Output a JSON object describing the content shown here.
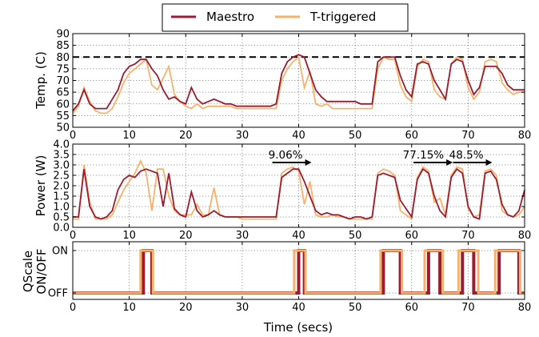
{
  "colors": {
    "maestro": "#9b1c31",
    "t_triggered": "#f6b26b"
  },
  "legend": [
    "Maestro",
    "T-triggered"
  ],
  "xlabel": "Time (secs)",
  "chart_data": [
    {
      "type": "line",
      "ylabel": "Temp. (C)",
      "xlim": [
        0,
        80
      ],
      "ylim": [
        50,
        90
      ],
      "xticks": [
        0,
        10,
        20,
        30,
        40,
        50,
        60,
        70,
        80
      ],
      "yticks": [
        50,
        55,
        60,
        65,
        70,
        75,
        80,
        85,
        90
      ],
      "threshold": 80,
      "series": [
        {
          "name": "Maestro",
          "x": [
            0,
            1,
            2,
            3,
            4,
            5,
            6,
            7,
            8,
            9,
            10,
            11,
            12,
            13,
            14,
            15,
            16,
            17,
            18,
            19,
            20,
            21,
            22,
            23,
            24,
            25,
            26,
            27,
            28,
            29,
            30,
            31,
            32,
            33,
            34,
            35,
            36,
            37,
            38,
            39,
            40,
            41,
            42,
            43,
            44,
            45,
            46,
            47,
            48,
            49,
            50,
            51,
            52,
            53,
            54,
            55,
            56,
            57,
            58,
            59,
            60,
            61,
            62,
            63,
            64,
            65,
            66,
            67,
            68,
            69,
            70,
            71,
            72,
            73,
            74,
            75,
            76,
            77,
            78,
            79,
            80
          ],
          "y": [
            57,
            60,
            66,
            60,
            58,
            58,
            58,
            62,
            66,
            73,
            76,
            77,
            79,
            79,
            75,
            72,
            66,
            62,
            63,
            61,
            60,
            67,
            62,
            60,
            61,
            62,
            61,
            60,
            60,
            59,
            59,
            59,
            59,
            59,
            59,
            59,
            60,
            73,
            78,
            80,
            81,
            80,
            73,
            66,
            63,
            61,
            61,
            61,
            61,
            61,
            61,
            60,
            60,
            60,
            78,
            80,
            80,
            80,
            72,
            66,
            63,
            77,
            78,
            77,
            70,
            66,
            62,
            77,
            79,
            78,
            70,
            64,
            67,
            76,
            76,
            76,
            73,
            68,
            66,
            66,
            66
          ]
        },
        {
          "name": "T-triggered",
          "x": [
            0,
            1,
            2,
            3,
            4,
            5,
            6,
            7,
            8,
            9,
            10,
            11,
            12,
            13,
            14,
            15,
            16,
            17,
            18,
            19,
            20,
            21,
            22,
            23,
            24,
            25,
            26,
            27,
            28,
            29,
            30,
            31,
            32,
            33,
            34,
            35,
            36,
            37,
            38,
            39,
            40,
            41,
            42,
            43,
            44,
            45,
            46,
            47,
            48,
            49,
            50,
            51,
            52,
            53,
            54,
            55,
            56,
            57,
            58,
            59,
            60,
            61,
            62,
            63,
            64,
            65,
            66,
            67,
            68,
            69,
            70,
            71,
            72,
            73,
            74,
            75,
            76,
            77,
            78,
            79,
            80
          ],
          "y": [
            56,
            59,
            67,
            61,
            57,
            56,
            56,
            58,
            63,
            69,
            73,
            75,
            77,
            79,
            68,
            66,
            71,
            76,
            64,
            61,
            59,
            58,
            60,
            58,
            59,
            59,
            59,
            59,
            59,
            58,
            58,
            58,
            58,
            58,
            58,
            58,
            58,
            70,
            75,
            78,
            80,
            67,
            74,
            60,
            59,
            60,
            58,
            58,
            58,
            58,
            58,
            58,
            58,
            58,
            75,
            80,
            79,
            79,
            68,
            63,
            61,
            76,
            79,
            78,
            66,
            63,
            62,
            77,
            80,
            79,
            67,
            62,
            65,
            78,
            79,
            78,
            69,
            66,
            64,
            65,
            65
          ]
        }
      ]
    },
    {
      "type": "line",
      "ylabel": "Power (W)",
      "xlim": [
        0,
        80
      ],
      "ylim": [
        0,
        4
      ],
      "xticks": [
        0,
        10,
        20,
        30,
        40,
        50,
        60,
        70,
        80
      ],
      "yticks": [
        0.0,
        0.5,
        1.0,
        1.5,
        2.0,
        2.5,
        3.0,
        3.5,
        4.0
      ],
      "annotations": [
        {
          "text": "9.06%",
          "x": 41
        },
        {
          "text": "77.15%",
          "x": 66
        },
        {
          "text": "48.5%",
          "x": 73
        }
      ],
      "series": [
        {
          "name": "Maestro",
          "x": [
            0,
            1,
            2,
            3,
            4,
            5,
            6,
            7,
            8,
            9,
            10,
            11,
            12,
            13,
            14,
            15,
            16,
            17,
            18,
            19,
            20,
            21,
            22,
            23,
            24,
            25,
            26,
            27,
            28,
            29,
            30,
            31,
            32,
            33,
            34,
            35,
            36,
            37,
            38,
            39,
            40,
            41,
            42,
            43,
            44,
            45,
            46,
            47,
            48,
            49,
            50,
            51,
            52,
            53,
            54,
            55,
            56,
            57,
            58,
            59,
            60,
            61,
            62,
            63,
            64,
            65,
            66,
            67,
            68,
            69,
            70,
            71,
            72,
            73,
            74,
            75,
            76,
            77,
            78,
            79,
            80
          ],
          "y": [
            0.5,
            0.5,
            2.8,
            1.0,
            0.5,
            0.4,
            0.5,
            0.8,
            1.8,
            2.3,
            2.5,
            2.4,
            2.7,
            2.8,
            2.7,
            2.6,
            1.0,
            2.6,
            0.9,
            0.6,
            0.5,
            1.7,
            0.8,
            0.5,
            0.6,
            0.8,
            0.6,
            0.5,
            0.5,
            0.5,
            0.5,
            0.5,
            0.5,
            0.5,
            0.5,
            0.5,
            0.5,
            2.4,
            2.6,
            2.8,
            2.8,
            2.2,
            1.5,
            0.8,
            0.6,
            0.7,
            0.6,
            0.6,
            0.5,
            0.4,
            0.5,
            0.5,
            0.4,
            0.5,
            2.5,
            2.6,
            2.5,
            2.4,
            1.3,
            0.9,
            0.5,
            2.3,
            2.8,
            2.6,
            1.5,
            0.8,
            0.5,
            2.4,
            2.8,
            2.6,
            1.0,
            0.5,
            0.4,
            2.6,
            2.7,
            2.3,
            1.1,
            0.6,
            0.5,
            0.8,
            1.8
          ]
        },
        {
          "name": "T-triggered",
          "x": [
            0,
            1,
            2,
            3,
            4,
            5,
            6,
            7,
            8,
            9,
            10,
            11,
            12,
            13,
            14,
            15,
            16,
            17,
            18,
            19,
            20,
            21,
            22,
            23,
            24,
            25,
            26,
            27,
            28,
            29,
            30,
            31,
            32,
            33,
            34,
            35,
            36,
            37,
            38,
            39,
            40,
            41,
            42,
            43,
            44,
            45,
            46,
            47,
            48,
            49,
            50,
            51,
            52,
            53,
            54,
            55,
            56,
            57,
            58,
            59,
            60,
            61,
            62,
            63,
            64,
            65,
            66,
            67,
            68,
            69,
            70,
            71,
            72,
            73,
            74,
            75,
            76,
            77,
            78,
            79,
            80
          ],
          "y": [
            0.4,
            0.4,
            3.0,
            1.2,
            0.4,
            0.4,
            0.4,
            0.6,
            1.2,
            1.8,
            2.2,
            2.6,
            3.2,
            2.6,
            0.8,
            2.8,
            2.8,
            1.5,
            0.8,
            0.6,
            0.6,
            0.6,
            1.1,
            0.6,
            0.6,
            1.9,
            0.6,
            0.5,
            0.5,
            0.5,
            0.4,
            0.4,
            0.4,
            0.4,
            0.4,
            0.4,
            0.4,
            2.6,
            2.8,
            2.9,
            2.7,
            1.1,
            2.2,
            0.6,
            0.5,
            0.5,
            0.6,
            0.5,
            0.5,
            0.4,
            0.4,
            0.4,
            0.4,
            0.4,
            2.6,
            2.8,
            2.7,
            2.5,
            0.8,
            0.6,
            0.4,
            2.4,
            2.9,
            2.7,
            1.2,
            1.4,
            0.6,
            2.5,
            2.9,
            2.8,
            0.9,
            0.5,
            0.6,
            2.7,
            2.8,
            2.5,
            0.8,
            0.6,
            0.5,
            0.6,
            1.0
          ]
        }
      ]
    },
    {
      "type": "line",
      "ylabel_lines": [
        "QScale",
        "ON/OFF"
      ],
      "xlim": [
        0,
        80
      ],
      "xticks": [
        0,
        10,
        20,
        30,
        40,
        50,
        60,
        70,
        80
      ],
      "ytick_labels": [
        "OFF",
        "ON"
      ],
      "series": [
        {
          "name": "Maestro",
          "on_intervals": [
            [
              12.5,
              14.0
            ],
            [
              40.0,
              41.0
            ],
            [
              55.0,
              58.0
            ],
            [
              63.0,
              65.0
            ],
            [
              69.0,
              71.0
            ],
            [
              75.5,
              79.0
            ]
          ]
        },
        {
          "name": "T-triggered",
          "on_intervals": [
            [
              12.0,
              14.2
            ],
            [
              39.2,
              41.2
            ],
            [
              54.5,
              58.3
            ],
            [
              62.3,
              65.5
            ],
            [
              68.3,
              71.8
            ],
            [
              74.8,
              79.2
            ]
          ]
        }
      ]
    }
  ]
}
